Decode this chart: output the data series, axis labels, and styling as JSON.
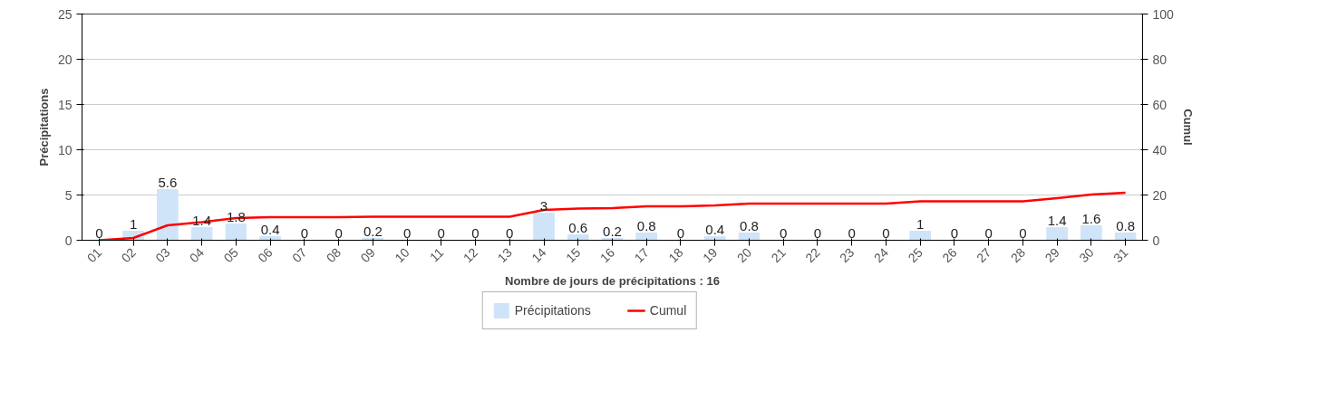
{
  "chart_data": {
    "type": "bar",
    "categories": [
      "01",
      "02",
      "03",
      "04",
      "05",
      "06",
      "07",
      "08",
      "09",
      "10",
      "11",
      "12",
      "13",
      "14",
      "15",
      "16",
      "17",
      "18",
      "19",
      "20",
      "21",
      "22",
      "23",
      "24",
      "25",
      "26",
      "27",
      "28",
      "29",
      "30",
      "31"
    ],
    "series": [
      {
        "name": "Précipitations",
        "color": "#cfe4f8",
        "values": [
          0,
          1,
          5.6,
          1.4,
          1.8,
          0.4,
          0,
          0,
          0.2,
          0,
          0,
          0,
          0,
          3,
          0.6,
          0.2,
          0.8,
          0,
          0.4,
          0.8,
          0,
          0,
          0,
          0,
          1,
          0,
          0,
          0,
          1.4,
          1.6,
          0.8
        ],
        "value_labels": [
          "0",
          "1",
          "5.6",
          "1.4",
          "1.8",
          "0.4",
          "0",
          "0",
          "0.2",
          "0",
          "0",
          "0",
          "0",
          "3",
          "0.6",
          "0.2",
          "0.8",
          "0",
          "0.4",
          "0.8",
          "0",
          "0",
          "0",
          "0",
          "1",
          "0",
          "0",
          "0",
          "1.4",
          "1.6",
          "0.8"
        ]
      },
      {
        "name": "Cumul",
        "type": "line",
        "axis": "y2",
        "color": "#ff0000",
        "values": [
          0,
          1,
          6.6,
          8,
          9.8,
          10.2,
          10.2,
          10.2,
          10.4,
          10.4,
          10.4,
          10.4,
          10.4,
          13.4,
          14,
          14.2,
          15,
          15,
          15.4,
          16.2,
          16.2,
          16.2,
          16.2,
          16.2,
          17.2,
          17.2,
          17.2,
          17.2,
          18.6,
          20.2,
          21
        ]
      }
    ],
    "xlabel": "Nombre de jours de précipitations : 16",
    "ylabel": "Précipitations",
    "y2label": "Cumul",
    "ylim": [
      0,
      25
    ],
    "yticks": [
      0,
      5,
      10,
      15,
      20,
      25
    ],
    "y2lim": [
      0,
      100
    ],
    "y2ticks": [
      0,
      20,
      40,
      60,
      80,
      100
    ],
    "grid": "y",
    "legend": "bottom"
  }
}
